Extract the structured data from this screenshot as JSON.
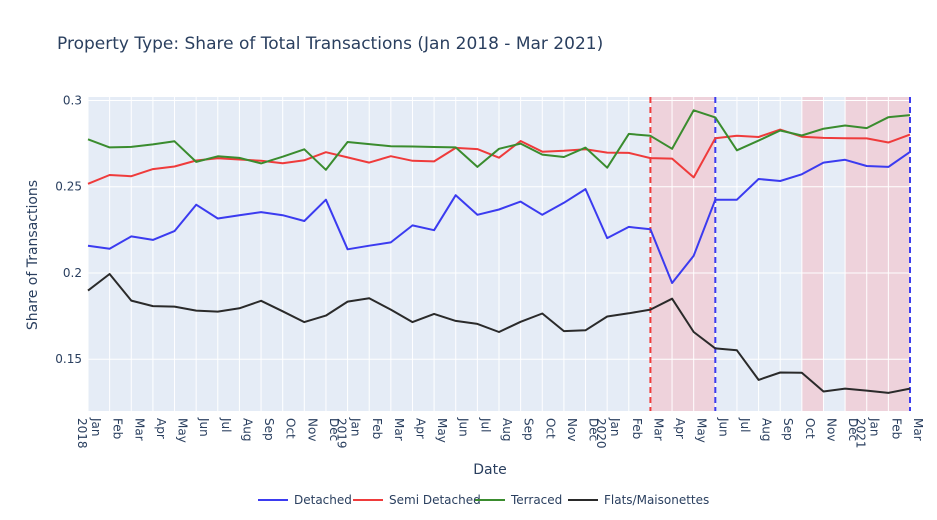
{
  "chart_data": {
    "type": "line",
    "title": "Property Type: Share of Total Transactions (Jan 2018 - Mar 2021)",
    "xlabel": "Date",
    "ylabel": "Share of Transactions",
    "ylim": [
      0.12,
      0.302
    ],
    "y_ticks": [
      0.15,
      0.2,
      0.25,
      0.3
    ],
    "y_tick_labels": [
      "0.15",
      "0.2",
      "0.25",
      "0.3"
    ],
    "grid": true,
    "legend_position": "bottom",
    "x_tick_labels": [
      [
        "Jan",
        "2018"
      ],
      [
        "Feb"
      ],
      [
        "Mar"
      ],
      [
        "Apr"
      ],
      [
        "May"
      ],
      [
        "Jun"
      ],
      [
        "Jul"
      ],
      [
        "Aug"
      ],
      [
        "Sep"
      ],
      [
        "Oct"
      ],
      [
        "Nov"
      ],
      [
        "Dec"
      ],
      [
        "Jan",
        "2019"
      ],
      [
        "Feb"
      ],
      [
        "Mar"
      ],
      [
        "Apr"
      ],
      [
        "May"
      ],
      [
        "Jun"
      ],
      [
        "Jul"
      ],
      [
        "Aug"
      ],
      [
        "Sep"
      ],
      [
        "Oct"
      ],
      [
        "Nov"
      ],
      [
        "Dec"
      ],
      [
        "Jan",
        "2020"
      ],
      [
        "Feb"
      ],
      [
        "Mar"
      ],
      [
        "Apr"
      ],
      [
        "May"
      ],
      [
        "Jun"
      ],
      [
        "Jul"
      ],
      [
        "Aug"
      ],
      [
        "Sep"
      ],
      [
        "Oct"
      ],
      [
        "Nov"
      ],
      [
        "Dec"
      ],
      [
        "Jan",
        "2021"
      ],
      [
        "Feb"
      ],
      [
        "Mar"
      ]
    ],
    "x": [
      "2018-01",
      "2018-02",
      "2018-03",
      "2018-04",
      "2018-05",
      "2018-06",
      "2018-07",
      "2018-08",
      "2018-09",
      "2018-10",
      "2018-11",
      "2018-12",
      "2019-01",
      "2019-02",
      "2019-03",
      "2019-04",
      "2019-05",
      "2019-06",
      "2019-07",
      "2019-08",
      "2019-09",
      "2019-10",
      "2019-11",
      "2019-12",
      "2020-01",
      "2020-02",
      "2020-03",
      "2020-04",
      "2020-05",
      "2020-06",
      "2020-07",
      "2020-08",
      "2020-09",
      "2020-10",
      "2020-11",
      "2020-12",
      "2021-01",
      "2021-02",
      "2021-03"
    ],
    "series": [
      {
        "name": "Detached",
        "color": "#3b3bf0",
        "values": [
          0.2158,
          0.214,
          0.2212,
          0.2192,
          0.2243,
          0.2396,
          0.2316,
          0.2335,
          0.2353,
          0.2335,
          0.2301,
          0.2425,
          0.2137,
          0.2158,
          0.2177,
          0.2276,
          0.2248,
          0.2451,
          0.2337,
          0.2368,
          0.2414,
          0.2337,
          0.2407,
          0.2486,
          0.2202,
          0.2267,
          0.2253,
          0.1942,
          0.21,
          0.2425,
          0.2425,
          0.2545,
          0.2533,
          0.2572,
          0.264,
          0.2656,
          0.262,
          0.2615,
          0.2702
        ]
      },
      {
        "name": "Semi Detached",
        "color": "#ef3b3b",
        "values": [
          0.2517,
          0.2568,
          0.2561,
          0.2602,
          0.2617,
          0.2652,
          0.2665,
          0.2658,
          0.265,
          0.2636,
          0.2653,
          0.27,
          0.267,
          0.264,
          0.2677,
          0.265,
          0.2647,
          0.2725,
          0.2718,
          0.2668,
          0.2765,
          0.2703,
          0.2708,
          0.2717,
          0.2698,
          0.2696,
          0.2666,
          0.2663,
          0.2554,
          0.2781,
          0.2795,
          0.2788,
          0.2831,
          0.279,
          0.2783,
          0.2781,
          0.278,
          0.2756,
          0.2802
        ]
      },
      {
        "name": "Terraced",
        "color": "#3a8c2e",
        "values": [
          0.2775,
          0.2728,
          0.2731,
          0.2745,
          0.2763,
          0.2644,
          0.2676,
          0.2667,
          0.2635,
          0.2674,
          0.2717,
          0.2598,
          0.2759,
          0.2747,
          0.2735,
          0.2733,
          0.273,
          0.2728,
          0.2615,
          0.272,
          0.275,
          0.2686,
          0.2672,
          0.2727,
          0.261,
          0.2806,
          0.2795,
          0.272,
          0.2943,
          0.2902,
          0.2711,
          0.2767,
          0.2826,
          0.2797,
          0.2836,
          0.2855,
          0.284,
          0.2903,
          0.2915
        ]
      },
      {
        "name": "Flats/Maisonettes",
        "color": "#2a2a2a",
        "values": [
          0.1898,
          0.1994,
          0.184,
          0.1808,
          0.1805,
          0.1782,
          0.1776,
          0.1795,
          0.1839,
          0.1778,
          0.1715,
          0.1753,
          0.1834,
          0.1853,
          0.1788,
          0.1715,
          0.1763,
          0.1722,
          0.1705,
          0.1658,
          0.1717,
          0.1765,
          0.1663,
          0.1668,
          0.1748,
          0.1766,
          0.1788,
          0.1851,
          0.1658,
          0.1563,
          0.1552,
          0.138,
          0.1423,
          0.1422,
          0.1313,
          0.133,
          0.1318,
          0.1305,
          0.133
        ]
      }
    ],
    "shaded_periods": [
      {
        "from": "2020-03",
        "to": "2020-06"
      },
      {
        "from": "2020-10",
        "to": "2020-11"
      },
      {
        "from": "2020-12",
        "to": "2021-03"
      }
    ],
    "vertical_lines": [
      {
        "x": "2020-03",
        "color": "#ef3b3b",
        "style": "dashed"
      },
      {
        "x": "2020-06",
        "color": "#3b3bf0",
        "style": "dashed"
      },
      {
        "x": "2021-03",
        "color": "#3b3bf0",
        "style": "dashed"
      }
    ],
    "colors": {
      "plot_background": "#e5ecf6",
      "gridline": "#ffffff",
      "shading": "#f0c9d2",
      "text": "#2a3f5f"
    }
  }
}
